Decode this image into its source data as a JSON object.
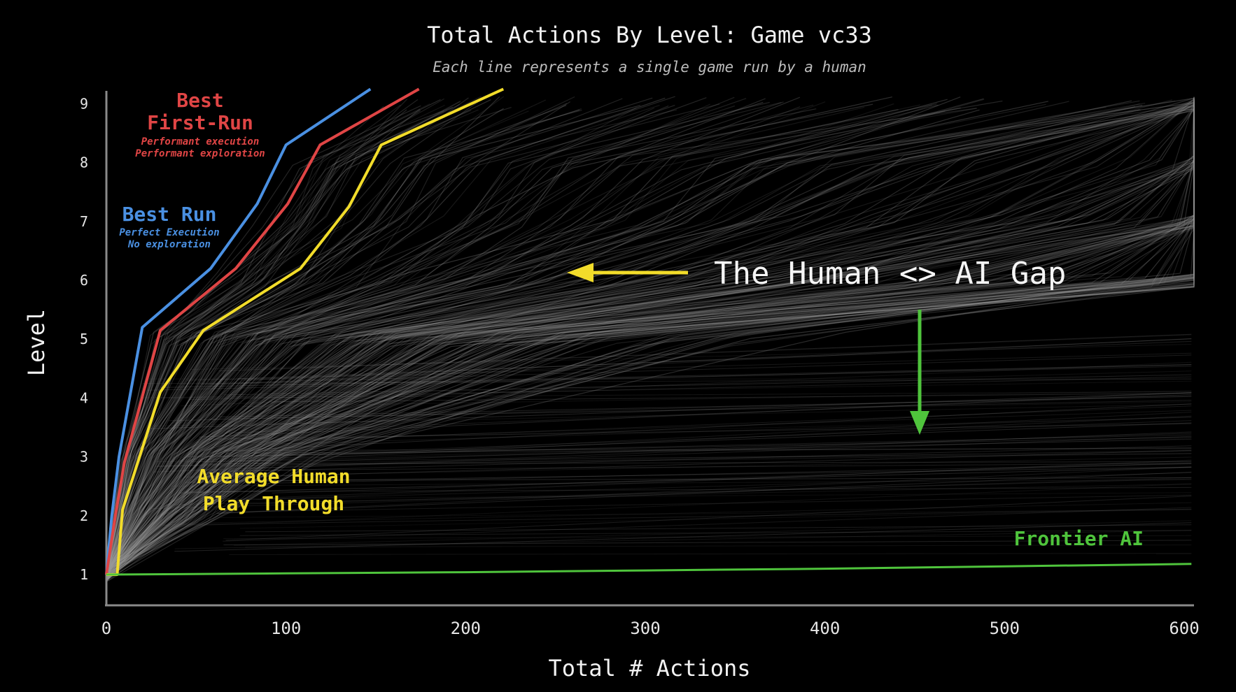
{
  "colors": {
    "background": "#000000",
    "human_runs": "#9a9a9a",
    "best_run": "#4a90e2",
    "best_first_run": "#e04545",
    "average_human": "#f2dc2a",
    "frontier_ai": "#4fc43c",
    "axis": "#8a8a8a"
  },
  "chart_data": {
    "type": "line",
    "title": "Total Actions By Level: Game vc33",
    "subtitle": "Each line represents a single game run by a human",
    "xlabel": "Total # Actions",
    "ylabel": "Level",
    "xlim": [
      0,
      600
    ],
    "ylim": [
      0.5,
      9.25
    ],
    "x_ticks": [
      "0",
      "100",
      "200",
      "300",
      "400",
      "500",
      "600"
    ],
    "y_ticks": [
      "1",
      "2",
      "3",
      "4",
      "5",
      "6",
      "7",
      "8",
      "9"
    ],
    "grid": false,
    "legend": "none",
    "series": [
      {
        "name": "Best Run",
        "color": "#4a90e2",
        "x": [
          0,
          3,
          7,
          20,
          58,
          84,
          100,
          147
        ],
        "y": [
          1,
          2,
          3,
          5.2,
          6.2,
          7.3,
          8.3,
          9.25
        ]
      },
      {
        "name": "Best First-Run",
        "color": "#e04545",
        "x": [
          0,
          5,
          10,
          30,
          72,
          101,
          119,
          174
        ],
        "y": [
          1,
          2,
          2.9,
          5.15,
          6.2,
          7.3,
          8.3,
          9.25
        ]
      },
      {
        "name": "Average Human Play Through",
        "color": "#f2dc2a",
        "x": [
          0,
          6,
          9,
          30,
          54,
          108,
          135,
          153,
          221
        ],
        "y": [
          1,
          1,
          2.1,
          4.1,
          5.15,
          6.2,
          7.25,
          8.3,
          9.25
        ]
      },
      {
        "name": "Frontier AI",
        "color": "#4fc43c",
        "x": [
          0,
          100,
          200,
          300,
          400,
          500,
          604
        ],
        "y": [
          1,
          1.02,
          1.04,
          1.07,
          1.1,
          1.14,
          1.18
        ]
      }
    ],
    "annotations": {
      "best_first_run": {
        "title_1": "Best",
        "title_2": "First-Run",
        "note_1": "Performant execution",
        "note_2": "Performant exploration"
      },
      "best_run": {
        "title": "Best Run",
        "note_1": "Perfect Execution",
        "note_2": "No exploration"
      },
      "average_human": {
        "line_1": "Average Human",
        "line_2": "Play Through"
      },
      "frontier_ai": "Frontier AI",
      "gap": "The Human <> AI Gap"
    }
  }
}
